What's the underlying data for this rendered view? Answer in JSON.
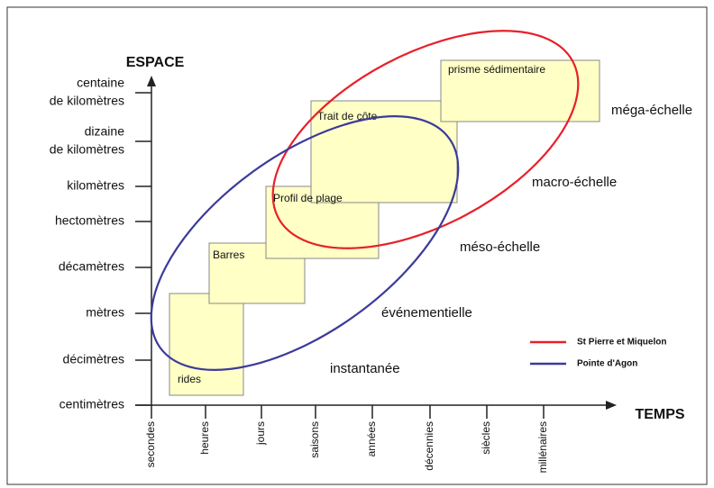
{
  "diagram": {
    "y_axis_label": "ESPACE",
    "x_axis_label": "TEMPS",
    "y_ticks": [
      [
        "centaine",
        "de kilomètres"
      ],
      [
        "dizaine",
        "de kilomètres"
      ],
      [
        "kilomètres"
      ],
      [
        "hectomètres"
      ],
      [
        "décamètres"
      ],
      [
        "mètres"
      ],
      [
        "décimètres"
      ],
      [
        "centimètres"
      ]
    ],
    "x_ticks": [
      "secondes",
      "heures",
      "jours",
      "saisons",
      "années",
      "décennies",
      "siècles",
      "millénaires"
    ],
    "boxes": [
      "rides",
      "Barres",
      "Profil de plage",
      "Trait de côte",
      "prisme sédimentaire"
    ],
    "scales": [
      "méga-échelle",
      "macro-échelle",
      "méso-échelle",
      "événementielle",
      "instantanée"
    ],
    "legend": [
      {
        "name": "St Pierre et Miquelon",
        "color": "#e8202a"
      },
      {
        "name": "Pointe d'Agon",
        "color": "#3b3b9a"
      }
    ]
  }
}
